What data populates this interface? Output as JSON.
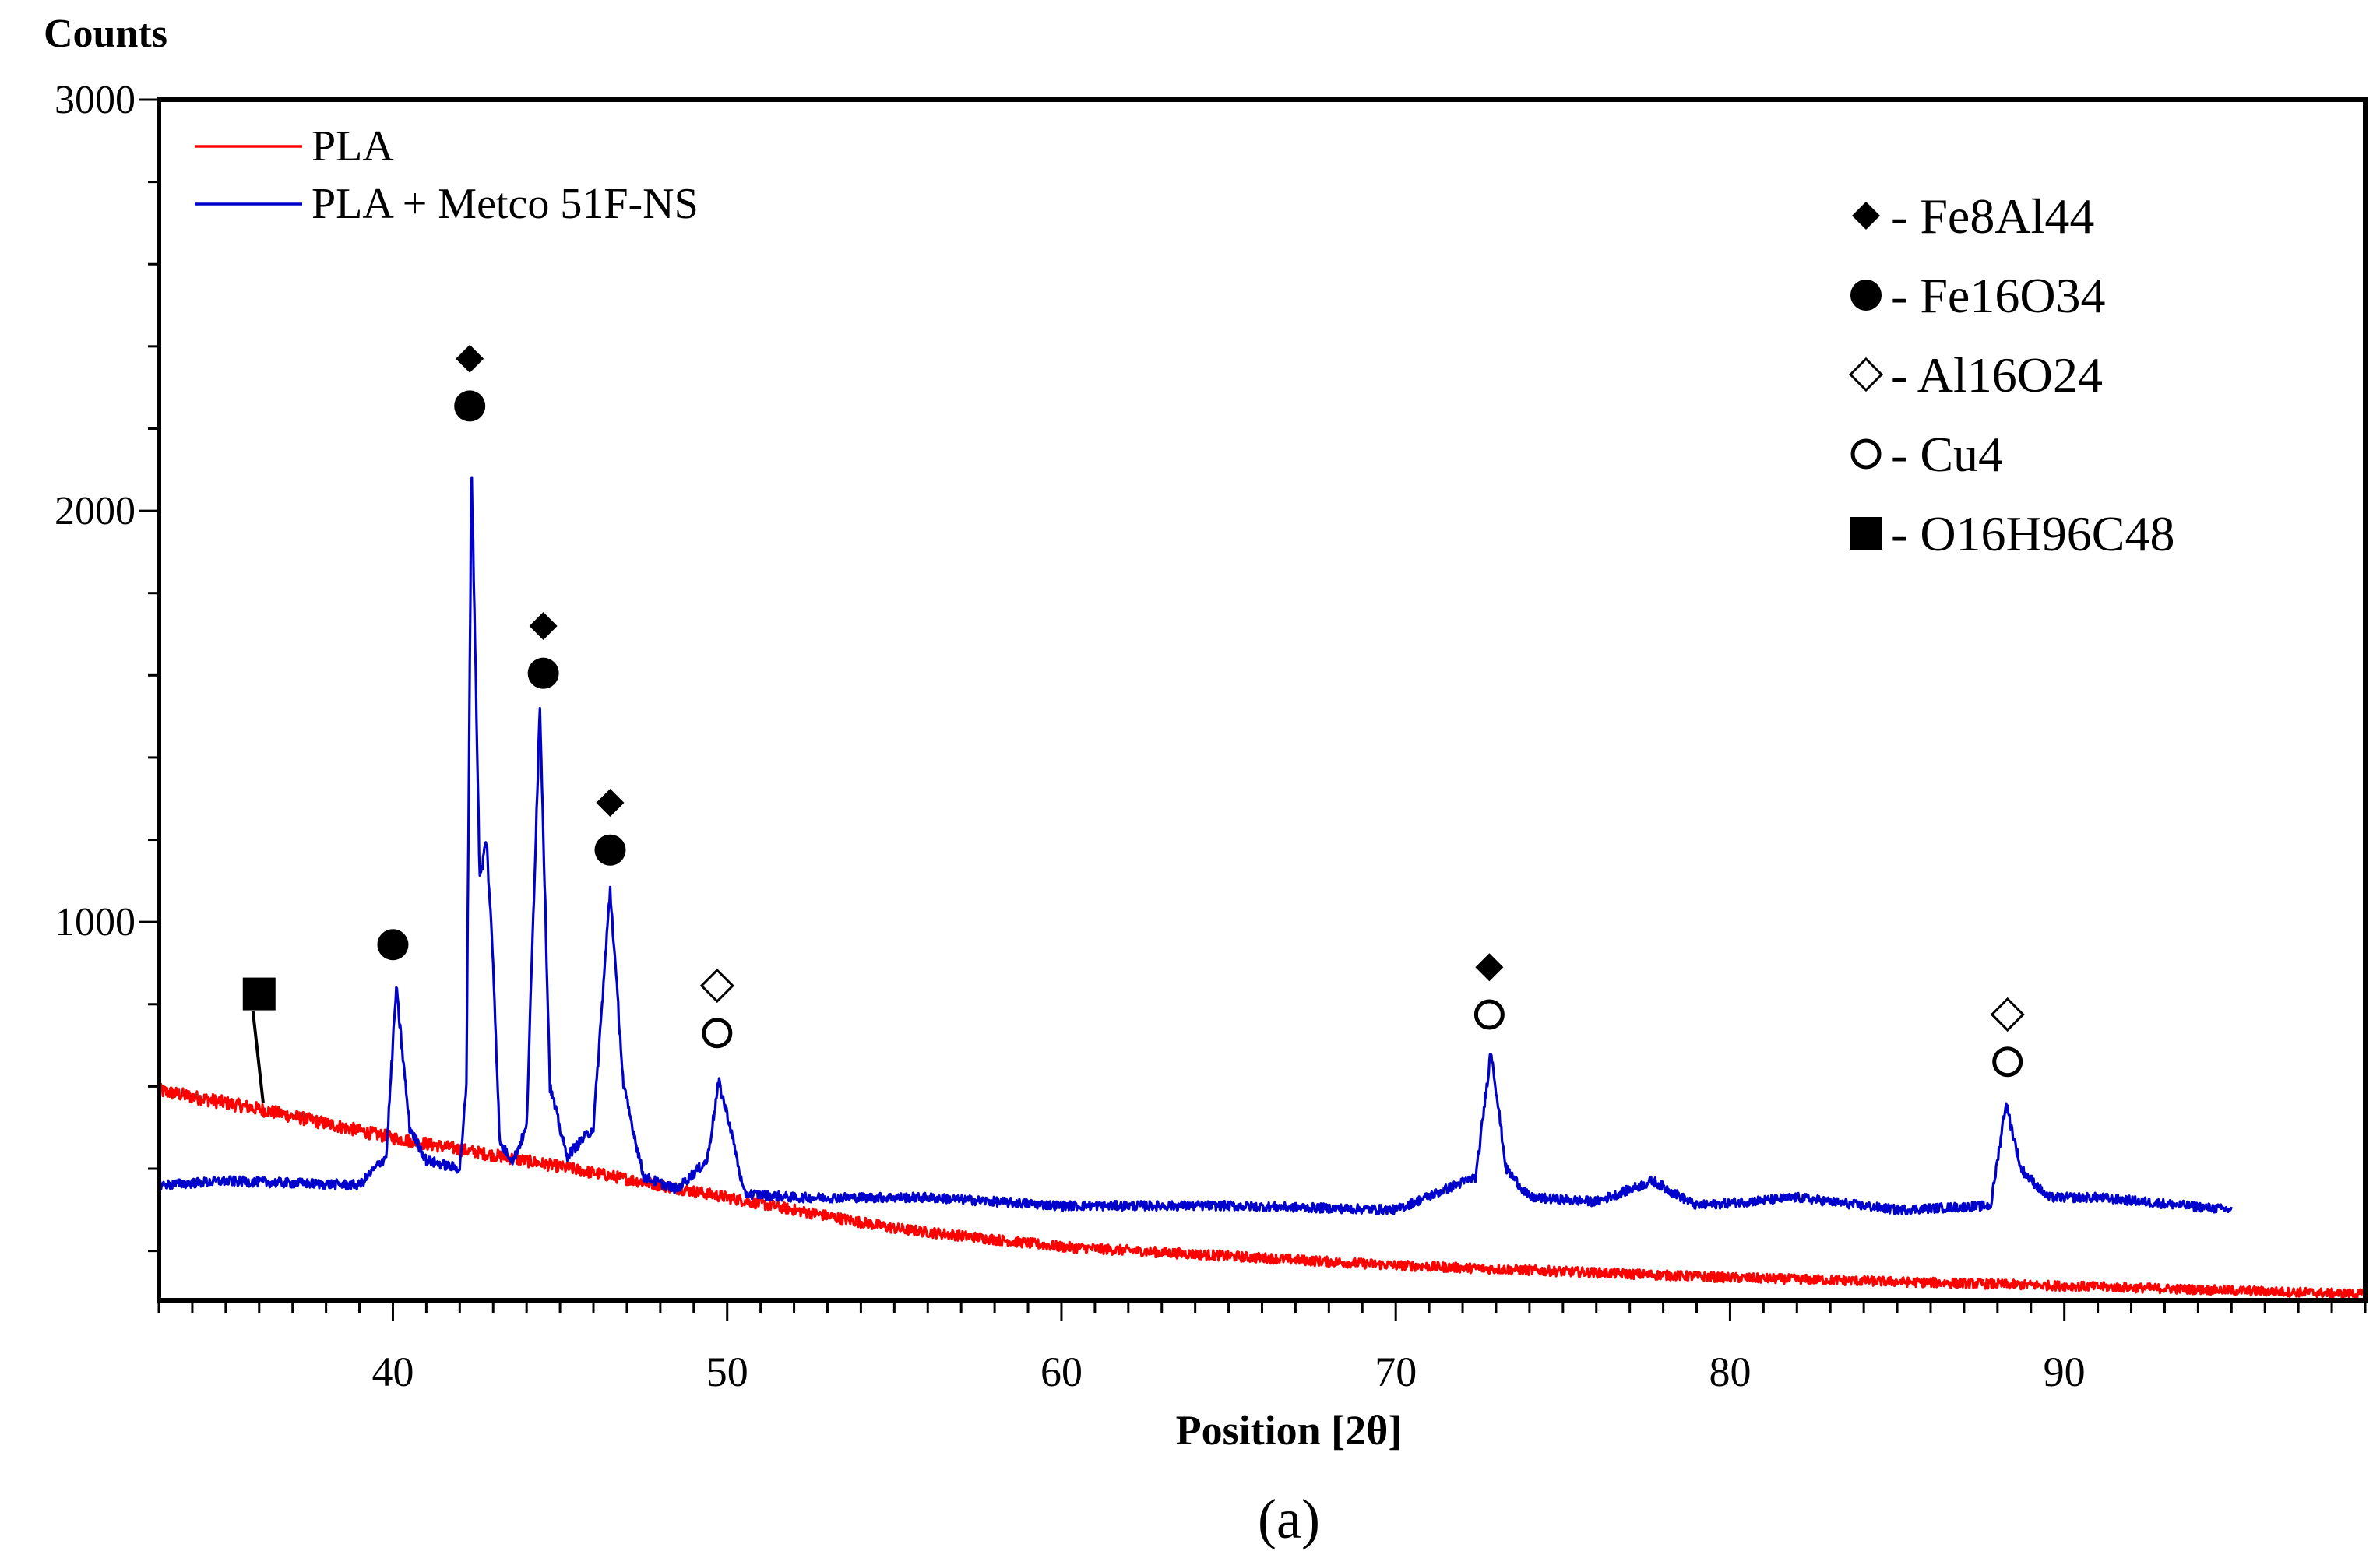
{
  "chart_data": {
    "type": "line",
    "title": "",
    "ylabel": "Counts",
    "xlabel": "Position [2θ]",
    "xlim": [
      33,
      99
    ],
    "ylim": [
      80,
      3000
    ],
    "x_ticks": [
      40,
      50,
      60,
      70,
      80,
      90
    ],
    "y_ticks": [
      1000,
      2000,
      3000
    ],
    "grid": false,
    "caption": "(a)",
    "legend_position": "top-left",
    "colors": {
      "PLA": "#ff0000",
      "PLA + Metco 51F-NS": "#0000cc"
    },
    "series": [
      {
        "name": "PLA",
        "color": "#ff0000",
        "x": [
          33,
          36,
          40,
          45,
          50,
          55,
          60,
          70,
          80,
          90,
          99
        ],
        "values": [
          590,
          545,
          475,
          405,
          330,
          255,
          210,
          165,
          135,
          115,
          95
        ]
      },
      {
        "name": "PLA + Metco 51F-NS",
        "color": "#0000cc",
        "x": [
          33,
          35,
          39,
          39.8,
          40.1,
          40.5,
          41,
          42,
          42.2,
          42.35,
          42.6,
          42.8,
          43.0,
          43.2,
          43.6,
          44.0,
          44.4,
          44.7,
          45.2,
          46.0,
          46.5,
          46.9,
          47.5,
          48.5,
          49.4,
          49.75,
          50.1,
          50.5,
          52,
          56,
          60,
          65,
          70,
          72.4,
          72.85,
          73.3,
          74,
          76,
          77.7,
          79,
          82,
          85,
          87.8,
          88.25,
          88.7,
          89.5,
          91,
          95
        ],
        "values": [
          360,
          370,
          360,
          430,
          840,
          500,
          420,
          400,
          600,
          2130,
          1100,
          1200,
          900,
          460,
          420,
          500,
          1530,
          600,
          430,
          500,
          1080,
          600,
          380,
          350,
          420,
          610,
          500,
          340,
          330,
          330,
          310,
          310,
          300,
          380,
          690,
          400,
          330,
          320,
          370,
          310,
          330,
          300,
          310,
          560,
          400,
          330,
          330,
          300
        ]
      }
    ],
    "phase_legend": [
      {
        "symbol": "filled-diamond",
        "label": "- Fe8Al44"
      },
      {
        "symbol": "filled-circle",
        "label": "- Fe16O34"
      },
      {
        "symbol": "open-diamond",
        "label": "- Al16O24"
      },
      {
        "symbol": "open-circle",
        "label": "- Cu4"
      },
      {
        "symbol": "filled-square",
        "label": "- O16H96C48"
      }
    ],
    "peak_markers": [
      {
        "x": 36.0,
        "y": 825,
        "symbol": "filled-square",
        "leader_to": 560
      },
      {
        "x": 40.0,
        "y": 945,
        "symbol": "filled-circle"
      },
      {
        "x": 42.3,
        "y": 2370,
        "symbol": "filled-diamond"
      },
      {
        "x": 42.3,
        "y": 2255,
        "symbol": "filled-circle"
      },
      {
        "x": 44.5,
        "y": 1720,
        "symbol": "filled-diamond"
      },
      {
        "x": 44.5,
        "y": 1605,
        "symbol": "filled-circle"
      },
      {
        "x": 46.5,
        "y": 1290,
        "symbol": "filled-diamond"
      },
      {
        "x": 46.5,
        "y": 1175,
        "symbol": "filled-circle"
      },
      {
        "x": 49.7,
        "y": 845,
        "symbol": "open-diamond"
      },
      {
        "x": 49.7,
        "y": 730,
        "symbol": "open-circle"
      },
      {
        "x": 72.8,
        "y": 890,
        "symbol": "filled-diamond"
      },
      {
        "x": 72.8,
        "y": 775,
        "symbol": "open-circle"
      },
      {
        "x": 88.3,
        "y": 775,
        "symbol": "open-diamond"
      },
      {
        "x": 88.3,
        "y": 660,
        "symbol": "open-circle"
      }
    ]
  }
}
